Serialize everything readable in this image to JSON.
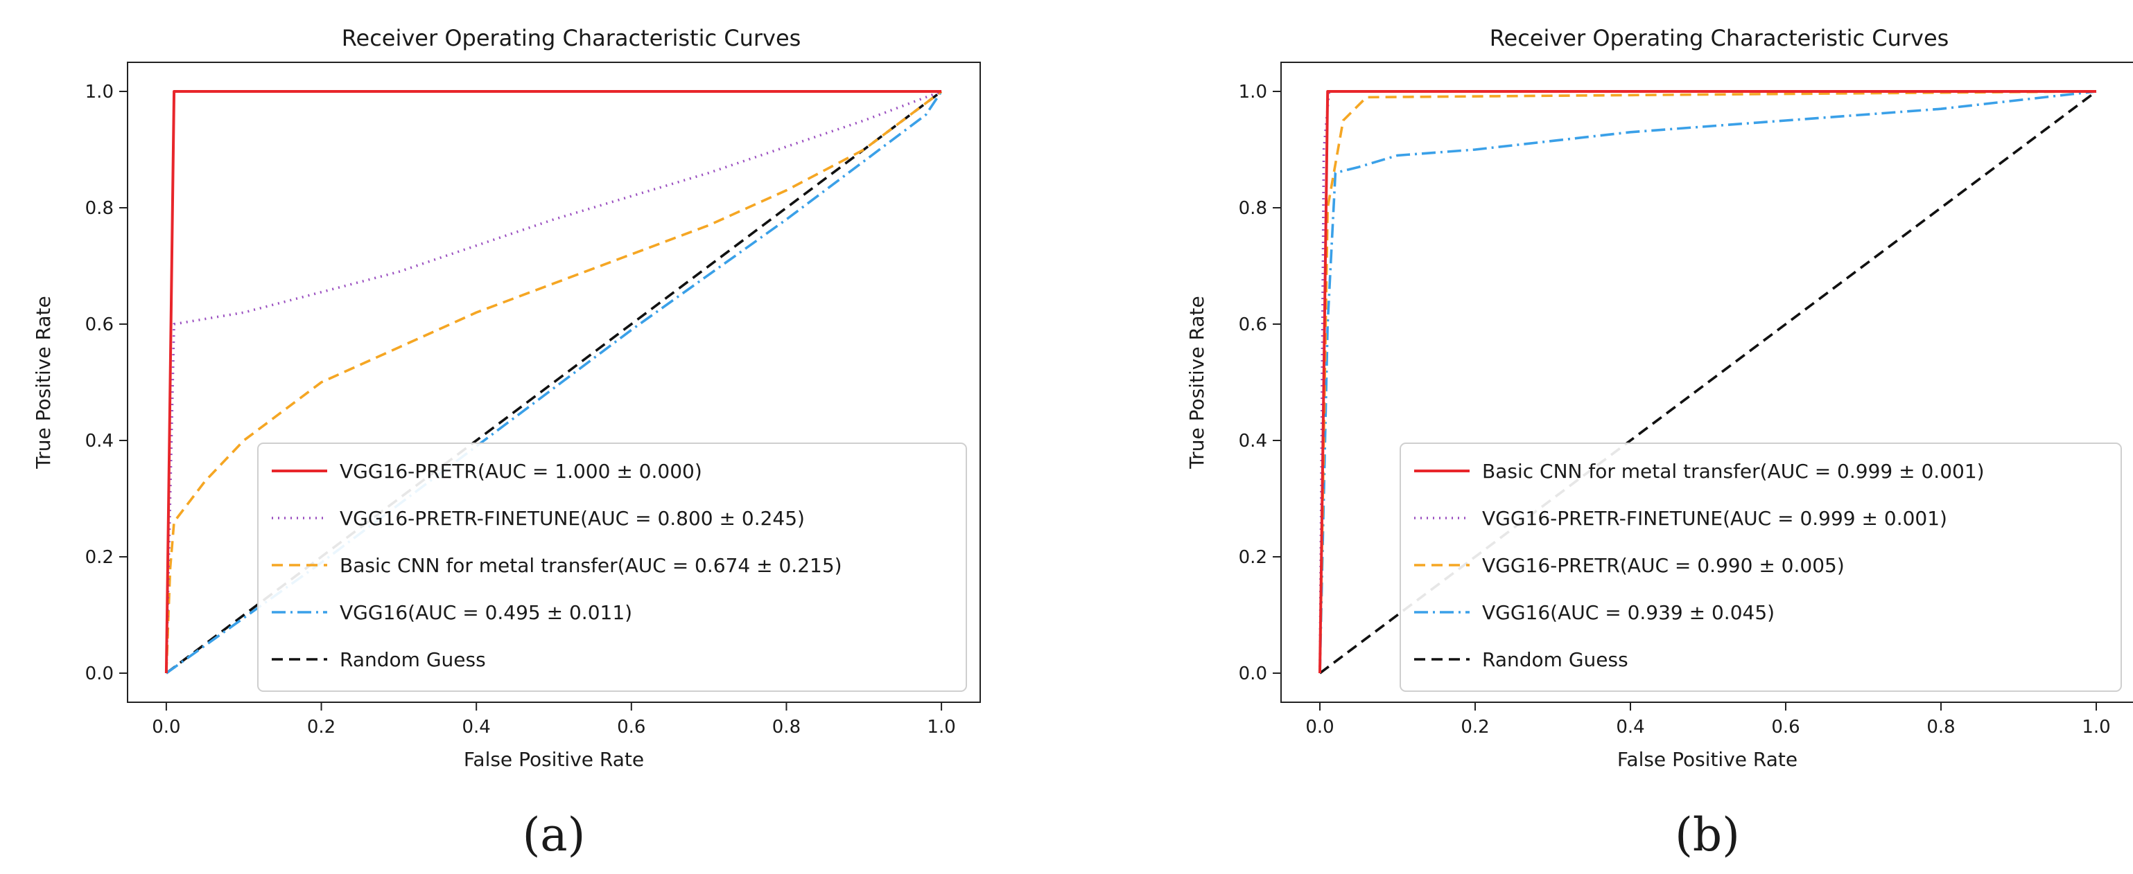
{
  "chart_data": [
    {
      "type": "line",
      "title": "Receiver Operating Characteristic Curves",
      "xlabel": "False Positive Rate",
      "ylabel": "True Positive Rate",
      "xlim": [
        -0.05,
        1.05
      ],
      "ylim": [
        -0.05,
        1.05
      ],
      "xticks": [
        "0.0",
        "0.2",
        "0.4",
        "0.6",
        "0.8",
        "1.0"
      ],
      "yticks": [
        "0.0",
        "0.2",
        "0.4",
        "0.6",
        "0.8",
        "1.0"
      ],
      "legend_position": "lower-right",
      "caption": "(a)",
      "series": [
        {
          "name": "VGG16-PRETR(AUC = 1.000 ± 0.000)",
          "color": "#e8262b",
          "style": "solid",
          "x": [
            0.0,
            0.01,
            1.0
          ],
          "y": [
            0.0,
            1.0,
            1.0
          ]
        },
        {
          "name": "VGG16-PRETR-FINETUNE(AUC = 0.800 ± 0.245)",
          "color": "#9a4fc0",
          "style": "dotted",
          "x": [
            0.0,
            0.005,
            0.01,
            0.1,
            0.3,
            0.5,
            0.7,
            0.9,
            1.0
          ],
          "y": [
            0.0,
            0.3,
            0.6,
            0.62,
            0.69,
            0.78,
            0.86,
            0.95,
            1.0
          ]
        },
        {
          "name": "Basic CNN for metal transfer(AUC = 0.674 ± 0.215)",
          "color": "#f5a623",
          "style": "dashed",
          "x": [
            0.0,
            0.005,
            0.01,
            0.05,
            0.1,
            0.2,
            0.3,
            0.4,
            0.5,
            0.6,
            0.7,
            0.8,
            0.9,
            1.0
          ],
          "y": [
            0.0,
            0.18,
            0.26,
            0.33,
            0.4,
            0.5,
            0.56,
            0.62,
            0.67,
            0.72,
            0.77,
            0.83,
            0.9,
            1.0
          ]
        },
        {
          "name": "VGG16(AUC = 0.495 ± 0.011)",
          "color": "#3aa0e8",
          "style": "dashdot",
          "x": [
            0.0,
            0.2,
            0.4,
            0.6,
            0.8,
            0.98,
            1.0
          ],
          "y": [
            0.0,
            0.19,
            0.39,
            0.59,
            0.78,
            0.96,
            1.0
          ]
        },
        {
          "name": "Random Guess",
          "color": "#111111",
          "style": "dashed",
          "x": [
            0.0,
            1.0
          ],
          "y": [
            0.0,
            1.0
          ]
        }
      ]
    },
    {
      "type": "line",
      "title": "Receiver Operating Characteristic Curves",
      "xlabel": "False Positive Rate",
      "ylabel": "True Positive Rate",
      "xlim": [
        -0.05,
        1.05
      ],
      "ylim": [
        -0.05,
        1.05
      ],
      "xticks": [
        "0.0",
        "0.2",
        "0.4",
        "0.6",
        "0.8",
        "1.0"
      ],
      "yticks": [
        "0.0",
        "0.2",
        "0.4",
        "0.6",
        "0.8",
        "1.0"
      ],
      "legend_position": "lower-right",
      "caption": "(b)",
      "series": [
        {
          "name": "Basic CNN for metal transfer(AUC = 0.999 ± 0.001)",
          "color": "#e8262b",
          "style": "solid",
          "x": [
            0.0,
            0.01,
            1.0
          ],
          "y": [
            0.0,
            1.0,
            1.0
          ]
        },
        {
          "name": "VGG16-PRETR-FINETUNE(AUC = 0.999 ± 0.001)",
          "color": "#9a4fc0",
          "style": "dotted",
          "x": [
            0.0,
            0.005,
            0.012,
            1.0
          ],
          "y": [
            0.0,
            0.9,
            1.0,
            1.0
          ]
        },
        {
          "name": "VGG16-PRETR(AUC = 0.990 ± 0.005)",
          "color": "#f5a623",
          "style": "dashed",
          "x": [
            0.0,
            0.01,
            0.03,
            0.06,
            1.0
          ],
          "y": [
            0.0,
            0.8,
            0.95,
            0.99,
            1.0
          ]
        },
        {
          "name": "VGG16(AUC = 0.939 ± 0.045)",
          "color": "#3aa0e8",
          "style": "dashdot",
          "x": [
            0.0,
            0.01,
            0.02,
            0.05,
            0.1,
            0.2,
            0.4,
            0.6,
            0.8,
            1.0
          ],
          "y": [
            0.0,
            0.6,
            0.86,
            0.87,
            0.89,
            0.9,
            0.93,
            0.95,
            0.97,
            1.0
          ]
        },
        {
          "name": "Random Guess",
          "color": "#111111",
          "style": "dashed",
          "x": [
            0.0,
            1.0
          ],
          "y": [
            0.0,
            1.0
          ]
        }
      ]
    }
  ]
}
